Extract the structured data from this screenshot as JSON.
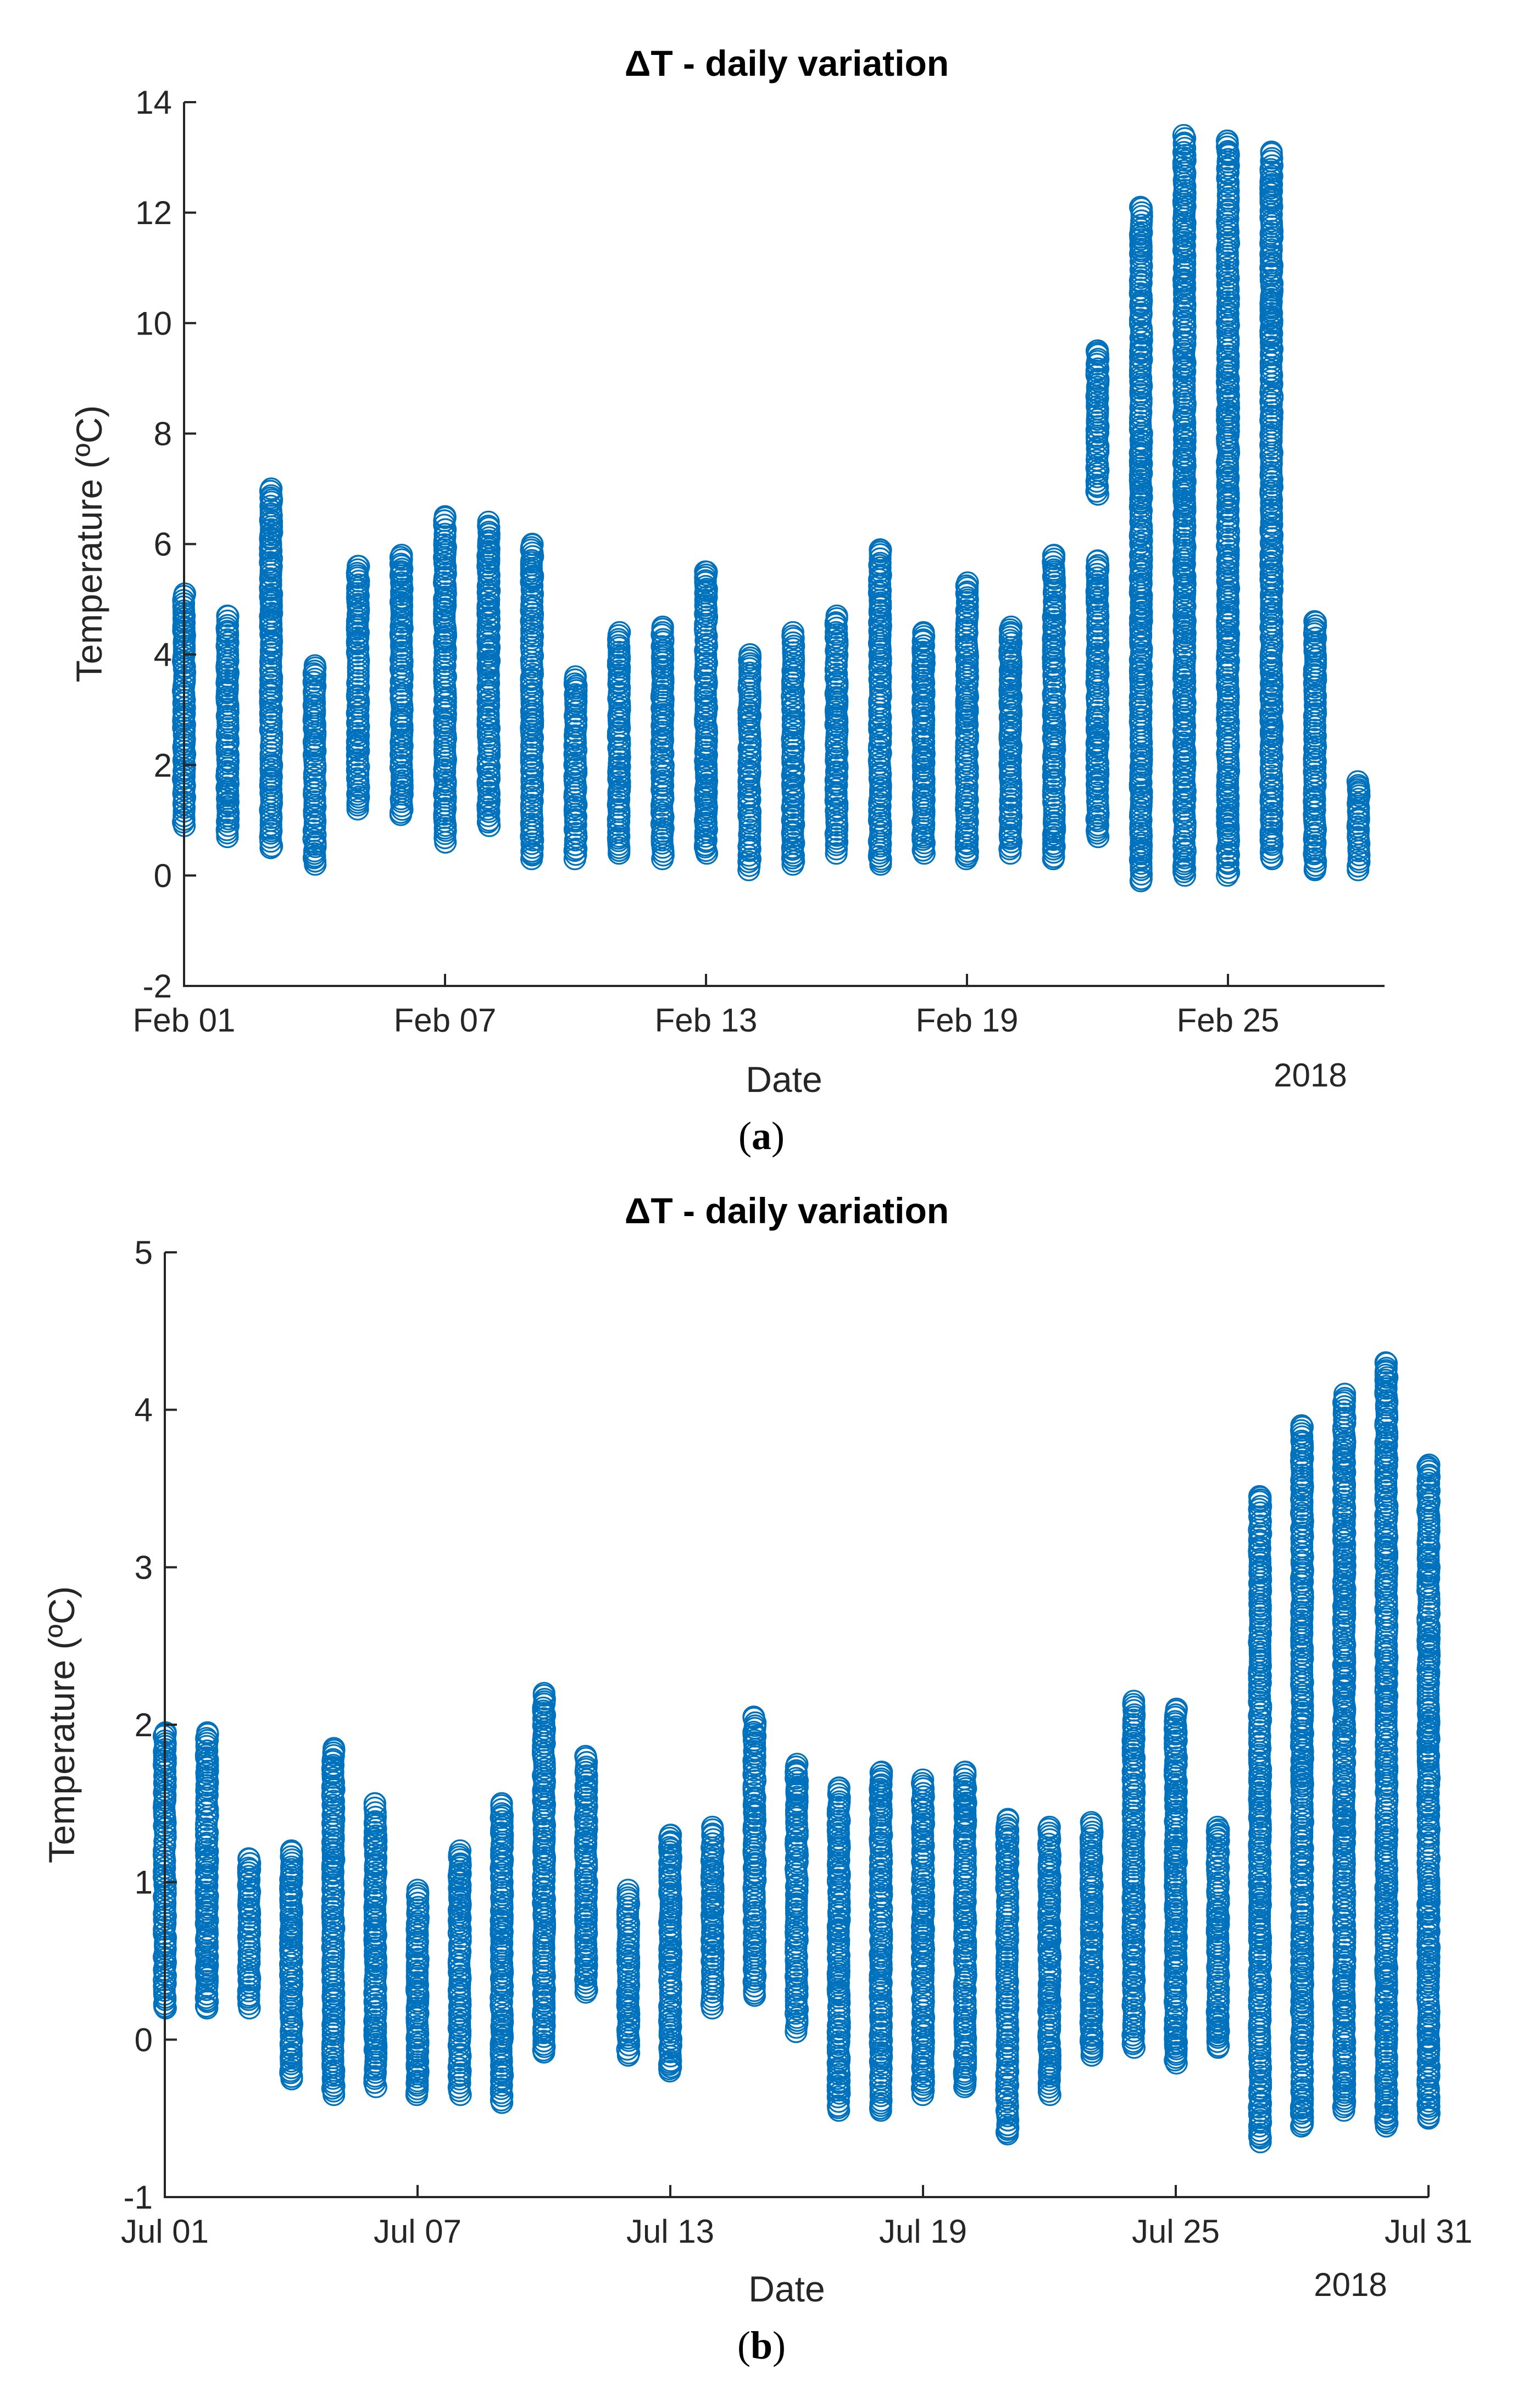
{
  "chart_data": [
    {
      "type": "scatter",
      "title": "ΔT - daily variation",
      "xlabel": "Date",
      "ylabel": "Temperature (ºC)",
      "year_label": "2018",
      "caption": "a",
      "ylim": [
        -2,
        14
      ],
      "yticks": [
        -2,
        0,
        2,
        4,
        6,
        8,
        10,
        12,
        14
      ],
      "xlim": [
        0,
        27.6
      ],
      "xticks": [
        0,
        6,
        12,
        18,
        24
      ],
      "xtick_labels": [
        "Feb 01",
        "Feb 07",
        "Feb 13",
        "Feb 19",
        "Feb 25"
      ],
      "marker": "circle",
      "color": "#0072BD",
      "days": [
        {
          "x": 0.0,
          "min": 0.9,
          "max": 5.1
        },
        {
          "x": 1.0,
          "min": 0.7,
          "max": 4.7
        },
        {
          "x": 2.0,
          "min": 0.5,
          "max": 7.0
        },
        {
          "x": 3.0,
          "min": 0.2,
          "max": 3.8
        },
        {
          "x": 4.0,
          "min": 1.2,
          "max": 5.6
        },
        {
          "x": 5.0,
          "min": 1.1,
          "max": 5.8
        },
        {
          "x": 6.0,
          "min": 0.6,
          "max": 6.5
        },
        {
          "x": 7.0,
          "min": 0.9,
          "max": 6.4
        },
        {
          "x": 8.0,
          "min": 0.3,
          "max": 6.0
        },
        {
          "x": 9.0,
          "min": 0.3,
          "max": 3.6
        },
        {
          "x": 10.0,
          "min": 0.4,
          "max": 4.4
        },
        {
          "x": 11.0,
          "min": 0.3,
          "max": 4.5
        },
        {
          "x": 12.0,
          "min": 0.4,
          "max": 5.5
        },
        {
          "x": 13.0,
          "min": 0.1,
          "max": 4.0
        },
        {
          "x": 14.0,
          "min": 0.2,
          "max": 4.4
        },
        {
          "x": 15.0,
          "min": 0.4,
          "max": 4.7
        },
        {
          "x": 16.0,
          "min": 0.2,
          "max": 5.9
        },
        {
          "x": 17.0,
          "min": 0.4,
          "max": 4.4
        },
        {
          "x": 18.0,
          "min": 0.3,
          "max": 5.3
        },
        {
          "x": 19.0,
          "min": 0.4,
          "max": 4.5
        },
        {
          "x": 20.0,
          "min": 0.3,
          "max": 5.8
        },
        {
          "x": 21.0,
          "min": 0.7,
          "max": 5.7,
          "upper_min": 6.9,
          "upper_max": 9.5
        },
        {
          "x": 22.0,
          "min": -0.1,
          "max": 12.1
        },
        {
          "x": 23.0,
          "min": 0.0,
          "max": 13.4
        },
        {
          "x": 24.0,
          "min": 0.0,
          "max": 13.3
        },
        {
          "x": 25.0,
          "min": 0.3,
          "max": 13.1
        },
        {
          "x": 26.0,
          "min": 0.1,
          "max": 4.6
        },
        {
          "x": 27.0,
          "min": 0.1,
          "max": 1.7
        }
      ]
    },
    {
      "type": "scatter",
      "title": "ΔT - daily variation",
      "xlabel": "Date",
      "ylabel": "Temperature (ºC)",
      "year_label": "2018",
      "caption": "b",
      "ylim": [
        -1,
        5
      ],
      "yticks": [
        -1,
        0,
        1,
        2,
        3,
        4,
        5
      ],
      "xlim": [
        0,
        30
      ],
      "xticks": [
        0,
        6,
        12,
        18,
        24,
        30
      ],
      "xtick_labels": [
        "Jul 01",
        "Jul 07",
        "Jul 13",
        "Jul 19",
        "Jul 25",
        "Jul 31"
      ],
      "marker": "circle",
      "color": "#0072BD",
      "days": [
        {
          "x": 0.0,
          "min": 0.2,
          "max": 1.95
        },
        {
          "x": 1.0,
          "min": 0.2,
          "max": 1.95
        },
        {
          "x": 2.0,
          "min": 0.2,
          "max": 1.15
        },
        {
          "x": 3.0,
          "min": -0.25,
          "max": 1.2
        },
        {
          "x": 4.0,
          "min": -0.35,
          "max": 1.85
        },
        {
          "x": 5.0,
          "min": -0.3,
          "max": 1.5
        },
        {
          "x": 6.0,
          "min": -0.35,
          "max": 0.95
        },
        {
          "x": 7.0,
          "min": -0.35,
          "max": 1.2
        },
        {
          "x": 8.0,
          "min": -0.4,
          "max": 1.5
        },
        {
          "x": 9.0,
          "min": -0.08,
          "max": 2.2
        },
        {
          "x": 10.0,
          "min": 0.3,
          "max": 1.8
        },
        {
          "x": 11.0,
          "min": -0.1,
          "max": 0.95
        },
        {
          "x": 12.0,
          "min": -0.2,
          "max": 1.3
        },
        {
          "x": 13.0,
          "min": 0.2,
          "max": 1.35
        },
        {
          "x": 14.0,
          "min": 0.28,
          "max": 2.05
        },
        {
          "x": 15.0,
          "min": 0.05,
          "max": 1.75
        },
        {
          "x": 16.0,
          "min": -0.45,
          "max": 1.6
        },
        {
          "x": 17.0,
          "min": -0.45,
          "max": 1.7
        },
        {
          "x": 18.0,
          "min": -0.35,
          "max": 1.65
        },
        {
          "x": 19.0,
          "min": -0.3,
          "max": 1.7
        },
        {
          "x": 20.0,
          "min": -0.6,
          "max": 1.4
        },
        {
          "x": 21.0,
          "min": -0.35,
          "max": 1.35
        },
        {
          "x": 22.0,
          "min": -0.1,
          "max": 1.38
        },
        {
          "x": 23.0,
          "min": -0.05,
          "max": 2.15
        },
        {
          "x": 24.0,
          "min": -0.15,
          "max": 2.1
        },
        {
          "x": 25.0,
          "min": -0.05,
          "max": 1.35
        },
        {
          "x": 26.0,
          "min": -0.65,
          "max": 3.45
        },
        {
          "x": 27.0,
          "min": -0.55,
          "max": 3.9
        },
        {
          "x": 28.0,
          "min": -0.45,
          "max": 4.1
        },
        {
          "x": 29.0,
          "min": -0.55,
          "max": 4.3
        },
        {
          "x": 30.0,
          "min": -0.5,
          "max": 3.65
        }
      ]
    }
  ]
}
